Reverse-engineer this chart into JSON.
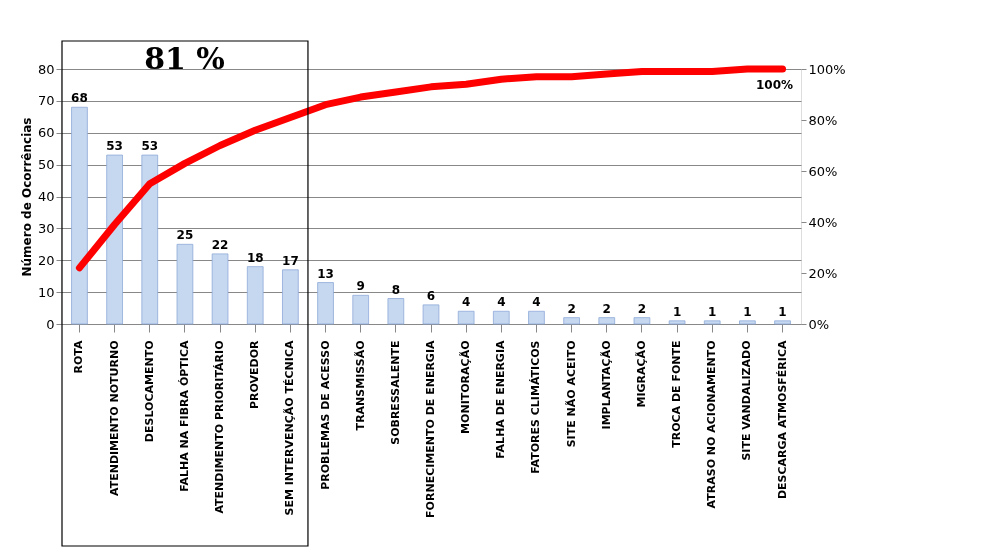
{
  "chart_data": {
    "type": "bar",
    "ylabel": "Número de Ocorrências",
    "categories": [
      "ROTA",
      "ATENDIMENTO NOTURNO",
      "DESLOCAMENTO",
      "FALHA NA FIBRA ÓPTICA",
      "ATENDIMENTO PRIORITÁRIO",
      "PROVEDOR",
      "SEM INTERVENÇÃO TÉCNICA",
      "PROBLEMAS DE ACESSO",
      "TRANSMISSÃO",
      "SOBRESSALENTE",
      "FORNECIMENTO DE ENERGIA",
      "MONITORAÇÃO",
      "FALHA DE ENERGIA",
      "FATORES CLIMÁTICOS",
      "SITE NÃO ACEITO",
      "IMPLANTAÇÃO",
      "MIGRAÇÃO",
      "TROCA DE FONTE",
      "ATRASO NO ACIONAMENTO",
      "SITE VANDALIZADO",
      "DESCARGA ATMOSFÉRICA"
    ],
    "series": [
      {
        "color": "#c6d7f0",
        "values": [
          68,
          53,
          53,
          25,
          22,
          18,
          17,
          13,
          9,
          8,
          6,
          4,
          4,
          4,
          2,
          2,
          2,
          1,
          1,
          1,
          1
        ],
        "value_labels": [
          "68",
          "53",
          "53",
          "25",
          "22",
          "18",
          "17",
          "13",
          "9",
          "8",
          "6",
          "4",
          "4",
          "4",
          "2",
          "2",
          "2",
          "1",
          "1",
          "1",
          "1"
        ]
      },
      {
        "type": "line",
        "axis": "y2",
        "color": "#ff0000",
        "values": [
          22,
          39,
          55,
          63,
          70,
          76,
          81,
          86,
          89,
          91,
          93,
          94,
          96,
          97,
          97,
          98,
          99,
          99,
          99,
          100,
          100
        ],
        "value_labels": [
          null,
          null,
          null,
          null,
          null,
          null,
          null,
          null,
          null,
          null,
          null,
          null,
          null,
          null,
          null,
          null,
          null,
          null,
          null,
          null,
          "100%"
        ]
      }
    ],
    "ylim": [
      0,
      80
    ],
    "yticks": [
      0,
      10,
      20,
      30,
      40,
      50,
      60,
      70,
      80
    ],
    "y2lim": [
      0,
      100
    ],
    "y2ticks": [
      {
        "value": 0,
        "label": "0%"
      },
      {
        "value": 20,
        "label": "20%"
      },
      {
        "value": 40,
        "label": "40%"
      },
      {
        "value": 60,
        "label": "60%"
      },
      {
        "value": 80,
        "label": "80%"
      },
      {
        "value": 100,
        "label": "100%"
      }
    ],
    "grid": "y",
    "line_style": "solid",
    "annotations": [
      "81 %"
    ]
  }
}
